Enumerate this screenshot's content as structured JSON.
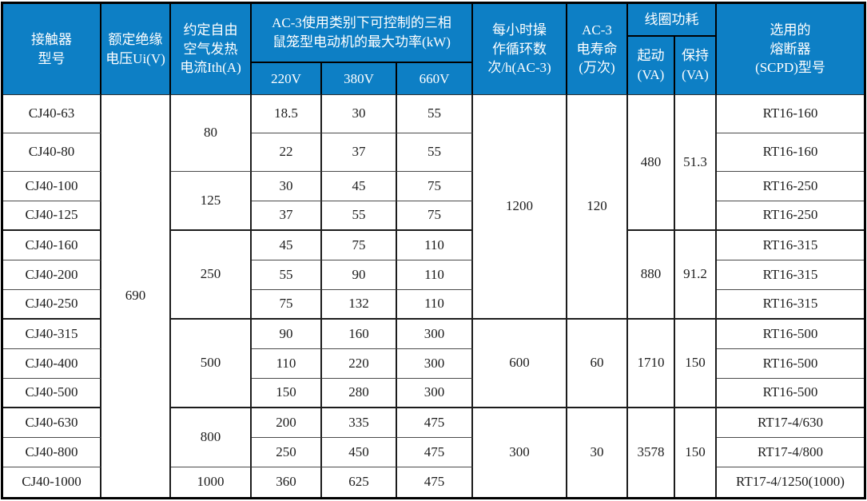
{
  "meta": {
    "description": "CJ40 series AC contactor technical specification table"
  },
  "colors": {
    "header_bg": "#0D7FC5",
    "header_text": "#FFFFFF",
    "body_bg": "#FFFFFF",
    "body_text": "#1C1C1C",
    "grid_line": "#1C1C1C",
    "outer_border": "#000000"
  },
  "header": {
    "model": "接触器\n型号",
    "insulation_voltage": "额定绝缘\n电压Ui(V)",
    "thermal_current": "约定自由\n空气发热\n电流Ith(A)",
    "ac3_power_group": "AC-3使用类别下可控制的三相\n鼠笼型电动机的最大功率(kW)",
    "v220": "220V",
    "v380": "380V",
    "v660": "660V",
    "cycles": "每小时操\n作循环数\n次/h(AC-3)",
    "life": "AC-3\n电寿命\n(万次)",
    "coil_group": "线圈功耗",
    "pickup": "起动\n(VA)",
    "hold": "保持\n(VA)",
    "fuse": "选用的\n熔断器\n(SCPD)型号"
  },
  "body": {
    "insulation_voltage": "690",
    "models": [
      "CJ40-63",
      "CJ40-80",
      "CJ40-100",
      "CJ40-125",
      "CJ40-160",
      "CJ40-200",
      "CJ40-250",
      "CJ40-315",
      "CJ40-400",
      "CJ40-500",
      "CJ40-630",
      "CJ40-800",
      "CJ40-1000"
    ],
    "p220": [
      "18.5",
      "22",
      "30",
      "37",
      "45",
      "55",
      "75",
      "90",
      "110",
      "150",
      "200",
      "250",
      "360"
    ],
    "p380": [
      "30",
      "37",
      "45",
      "55",
      "75",
      "90",
      "132",
      "160",
      "220",
      "280",
      "335",
      "450",
      "625"
    ],
    "p660": [
      "55",
      "55",
      "75",
      "75",
      "110",
      "110",
      "110",
      "300",
      "300",
      "300",
      "475",
      "475",
      "475"
    ],
    "fuses": [
      "RT16-160",
      "RT16-160",
      "RT16-250",
      "RT16-250",
      "RT16-315",
      "RT16-315",
      "RT16-315",
      "RT16-500",
      "RT16-500",
      "RT16-500",
      "RT17-4/630",
      "RT17-4/800",
      "RT17-4/1250(1000)"
    ],
    "ith_groups": [
      {
        "value": "80"
      },
      {
        "value": "125"
      },
      {
        "value": "250"
      },
      {
        "value": "500"
      },
      {
        "value": "800"
      },
      {
        "value": "1000"
      }
    ],
    "cycle_groups": [
      {
        "cycles": "1200",
        "life": "120"
      },
      {
        "cycles": "600",
        "life": "60"
      },
      {
        "cycles": "300",
        "life": "30"
      }
    ],
    "coil_groups": [
      {
        "pickup": "480",
        "hold": "51.3"
      },
      {
        "pickup": "880",
        "hold": "91.2"
      },
      {
        "pickup": "1710",
        "hold": "150"
      },
      {
        "pickup": "3578",
        "hold": "150"
      }
    ]
  }
}
